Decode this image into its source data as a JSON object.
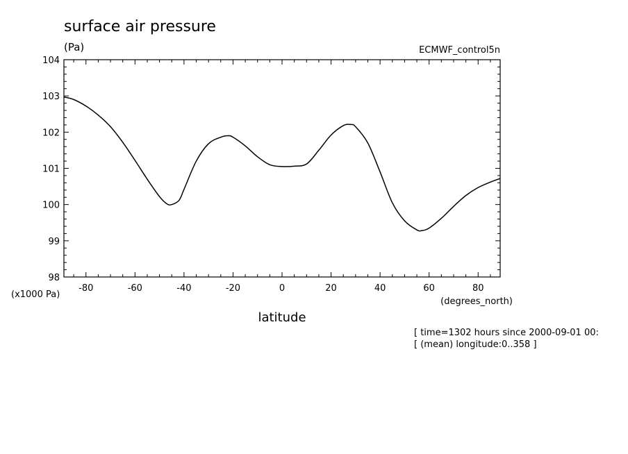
{
  "chart_data": {
    "type": "line",
    "title": "surface air pressure",
    "units": "(Pa)",
    "dataset_label": "ECMWF_control5n",
    "xlabel": "latitude",
    "x_units": "(degrees_north)",
    "y_scale_label": "(x1000 Pa)",
    "footnotes": [
      "[ time=1302 hours since 2000-09-01 00:",
      "[ (mean) longitude:0..358 ]"
    ],
    "xlim": [
      -89,
      89
    ],
    "ylim": [
      98,
      104
    ],
    "x_ticks": [
      -80,
      -60,
      -40,
      -20,
      0,
      20,
      40,
      60,
      80
    ],
    "y_ticks": [
      98,
      99,
      100,
      101,
      102,
      103,
      104
    ],
    "grid": false,
    "series": [
      {
        "x": [
          -89,
          -85,
          -80,
          -75,
          -70,
          -65,
          -60,
          -55,
          -50,
          -47,
          -45,
          -42,
          -40,
          -35,
          -30,
          -25,
          -22,
          -20,
          -15,
          -10,
          -5,
          0,
          5,
          10,
          15,
          20,
          25,
          28,
          30,
          35,
          40,
          45,
          50,
          55,
          57,
          60,
          65,
          70,
          75,
          80,
          85,
          89
        ],
        "values": [
          102.97,
          102.9,
          102.72,
          102.47,
          102.15,
          101.72,
          101.22,
          100.7,
          100.22,
          100.02,
          100.0,
          100.12,
          100.42,
          101.2,
          101.68,
          101.86,
          101.9,
          101.86,
          101.62,
          101.32,
          101.1,
          101.05,
          101.06,
          101.12,
          101.5,
          101.92,
          102.18,
          102.21,
          102.15,
          101.7,
          100.9,
          100.05,
          99.55,
          99.3,
          99.28,
          99.35,
          99.62,
          99.95,
          100.25,
          100.47,
          100.62,
          100.72
        ]
      }
    ],
    "colors": {
      "line": "#000000",
      "axes": "#000000",
      "background": "#ffffff"
    }
  }
}
